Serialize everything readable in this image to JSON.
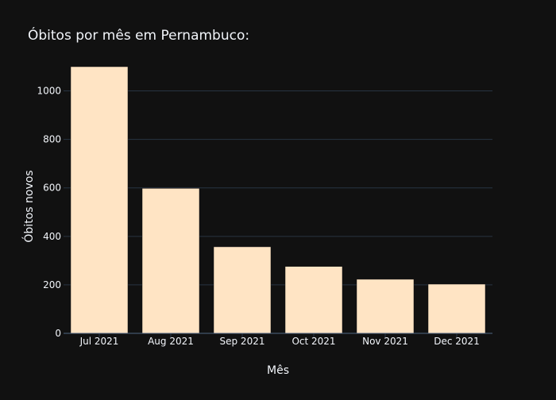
{
  "chart_data": {
    "type": "bar",
    "title": "Óbitos por mês em Pernambuco:",
    "xlabel": "Mês",
    "ylabel": "Óbitos novos",
    "categories": [
      "Jul 2021",
      "Aug 2021",
      "Sep 2021",
      "Oct 2021",
      "Nov 2021",
      "Dec 2021"
    ],
    "values": [
      1100,
      598,
      357,
      276,
      223,
      203
    ],
    "ylim": [
      0,
      1100
    ],
    "yticks": [
      0,
      200,
      400,
      600,
      800,
      1000
    ],
    "grid": true,
    "legend": "none"
  },
  "colors": {
    "background": "#111111",
    "bar": "#ffe4c4",
    "grid": "#283442",
    "text": "#f2f5fa"
  }
}
